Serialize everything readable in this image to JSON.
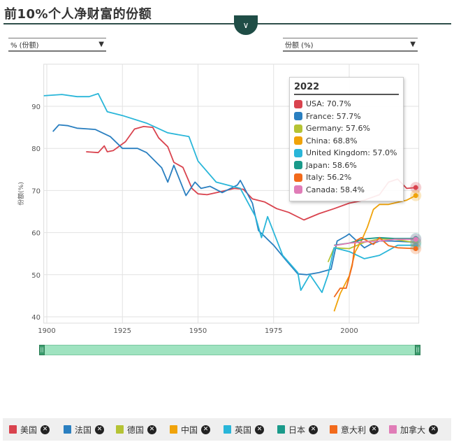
{
  "header": {
    "title": "前10%个人净财富的份额"
  },
  "controls": {
    "left_select": "% (份额)",
    "right_select": "份额 (%)"
  },
  "chart_data": {
    "type": "line",
    "title": "",
    "xlabel": "",
    "ylabel": "份额(%)",
    "xlim": [
      1899,
      2023
    ],
    "ylim": [
      38.5,
      100
    ],
    "x_ticks": [
      1900,
      1925,
      1950,
      1975,
      2000
    ],
    "y_ticks": [
      40,
      50,
      60,
      70,
      80,
      90
    ],
    "grid": true,
    "series": [
      {
        "name": "USA",
        "legend": "美国",
        "color": "#d9434e",
        "points": [
          [
            1913,
            79.2
          ],
          [
            1917,
            79
          ],
          [
            1919,
            80.6
          ],
          [
            1920,
            79.2
          ],
          [
            1922,
            79.5
          ],
          [
            1926,
            81.6
          ],
          [
            1929,
            84.6
          ],
          [
            1932,
            85.2
          ],
          [
            1935,
            85
          ],
          [
            1937,
            82.5
          ],
          [
            1940,
            80.4
          ],
          [
            1942,
            76.7
          ],
          [
            1945,
            75.5
          ],
          [
            1948,
            70.5
          ],
          [
            1950,
            69.2
          ],
          [
            1953,
            69
          ],
          [
            1958,
            69.8
          ],
          [
            1962,
            70.5
          ],
          [
            1965,
            70.3
          ],
          [
            1968,
            68
          ],
          [
            1972,
            67.3
          ],
          [
            1976,
            65.7
          ],
          [
            1980,
            64.8
          ],
          [
            1985,
            63
          ],
          [
            1990,
            64.5
          ],
          [
            1995,
            65.7
          ],
          [
            2000,
            67
          ],
          [
            2005,
            67.7
          ],
          [
            2010,
            69
          ],
          [
            2013,
            72
          ],
          [
            2016,
            72.7
          ],
          [
            2019,
            70.5
          ],
          [
            2022,
            70.7
          ]
        ]
      },
      {
        "name": "France",
        "legend": "法国",
        "color": "#2a7fc0",
        "points": [
          [
            1902,
            84
          ],
          [
            1904,
            85.6
          ],
          [
            1907,
            85.4
          ],
          [
            1910,
            84.8
          ],
          [
            1916,
            84.5
          ],
          [
            1921,
            82.8
          ],
          [
            1925,
            80
          ],
          [
            1930,
            80
          ],
          [
            1933,
            79
          ],
          [
            1938,
            75.4
          ],
          [
            1940,
            72
          ],
          [
            1942,
            76
          ],
          [
            1946,
            68.8
          ],
          [
            1949,
            72
          ],
          [
            1951,
            70.5
          ],
          [
            1954,
            71
          ],
          [
            1958,
            69.5
          ],
          [
            1963,
            71.3
          ],
          [
            1964,
            72.4
          ],
          [
            1968,
            67
          ],
          [
            1970,
            60.5
          ],
          [
            1975,
            57
          ],
          [
            1979,
            53.5
          ],
          [
            1983,
            50.2
          ],
          [
            1986,
            50
          ],
          [
            1990,
            50.5
          ],
          [
            1994,
            51.3
          ],
          [
            1996,
            58
          ],
          [
            1999,
            59.2
          ],
          [
            2000,
            59.7
          ],
          [
            2001,
            59
          ],
          [
            2005,
            56.4
          ],
          [
            2007,
            57.2
          ],
          [
            2010,
            58
          ],
          [
            2014,
            58
          ],
          [
            2022,
            57.7
          ]
        ]
      },
      {
        "name": "Germany",
        "legend": "德国",
        "color": "#b5c334",
        "points": [
          [
            1993,
            53
          ],
          [
            1995,
            56.4
          ],
          [
            2000,
            56.2
          ],
          [
            2005,
            57.7
          ],
          [
            2010,
            58.5
          ],
          [
            2015,
            58.4
          ],
          [
            2022,
            57.6
          ]
        ]
      },
      {
        "name": "China",
        "legend": "中国",
        "color": "#f0a30a",
        "points": [
          [
            1995,
            41.3
          ],
          [
            1997,
            45.5
          ],
          [
            2000,
            49.7
          ],
          [
            2002,
            55.5
          ],
          [
            2004,
            58
          ],
          [
            2006,
            61.3
          ],
          [
            2008,
            65.5
          ],
          [
            2010,
            66.7
          ],
          [
            2013,
            66.7
          ],
          [
            2016,
            67.2
          ],
          [
            2019,
            67.7
          ],
          [
            2022,
            68.8
          ]
        ]
      },
      {
        "name": "United Kingdom",
        "legend": "英国",
        "color": "#29b6d9",
        "points": [
          [
            1899,
            92.5
          ],
          [
            1905,
            92.8
          ],
          [
            1910,
            92.3
          ],
          [
            1914,
            92.3
          ],
          [
            1917,
            93
          ],
          [
            1920,
            88.7
          ],
          [
            1925,
            87.8
          ],
          [
            1933,
            86
          ],
          [
            1940,
            83.7
          ],
          [
            1947,
            82.8
          ],
          [
            1950,
            77
          ],
          [
            1956,
            72
          ],
          [
            1964,
            70.5
          ],
          [
            1969,
            63.8
          ],
          [
            1971,
            58.8
          ],
          [
            1973,
            63.8
          ],
          [
            1978,
            54.6
          ],
          [
            1983,
            50.5
          ],
          [
            1984,
            46.3
          ],
          [
            1987,
            50
          ],
          [
            1991,
            45.8
          ],
          [
            1993,
            50
          ],
          [
            1995,
            56.4
          ],
          [
            2000,
            55.5
          ],
          [
            2005,
            53.8
          ],
          [
            2010,
            54.6
          ],
          [
            2016,
            57
          ],
          [
            2022,
            57
          ]
        ]
      },
      {
        "name": "Japan",
        "legend": "日本",
        "color": "#1a9a8a",
        "points": [
          [
            1995,
            57
          ],
          [
            2000,
            57.5
          ],
          [
            2005,
            58.5
          ],
          [
            2010,
            58.8
          ],
          [
            2015,
            58.6
          ],
          [
            2022,
            58.6
          ]
        ]
      },
      {
        "name": "Italy",
        "legend": "意大利",
        "color": "#f26a1b",
        "points": [
          [
            1995,
            44.7
          ],
          [
            1997,
            46.8
          ],
          [
            1999,
            46.8
          ],
          [
            2001,
            52.2
          ],
          [
            2002,
            58
          ],
          [
            2004,
            58.8
          ],
          [
            2006,
            58
          ],
          [
            2008,
            57.2
          ],
          [
            2010,
            58.8
          ],
          [
            2013,
            56.9
          ],
          [
            2016,
            56.4
          ],
          [
            2022,
            56.2
          ]
        ]
      },
      {
        "name": "Canada",
        "legend": "加拿大",
        "color": "#e07cb7",
        "points": [
          [
            1995,
            56.9
          ],
          [
            2000,
            57.5
          ],
          [
            2005,
            57.8
          ],
          [
            2010,
            58
          ],
          [
            2015,
            58.4
          ],
          [
            2022,
            58.4
          ]
        ]
      }
    ],
    "tooltip": {
      "year": "2022",
      "rows": [
        "USA: 70.7%",
        "France: 57.7%",
        "Germany: 57.6%",
        "China: 68.8%",
        "United Kingdom: 57.0%",
        "Japan: 58.6%",
        "Italy: 56.2%",
        "Canada: 58.4%"
      ]
    }
  }
}
